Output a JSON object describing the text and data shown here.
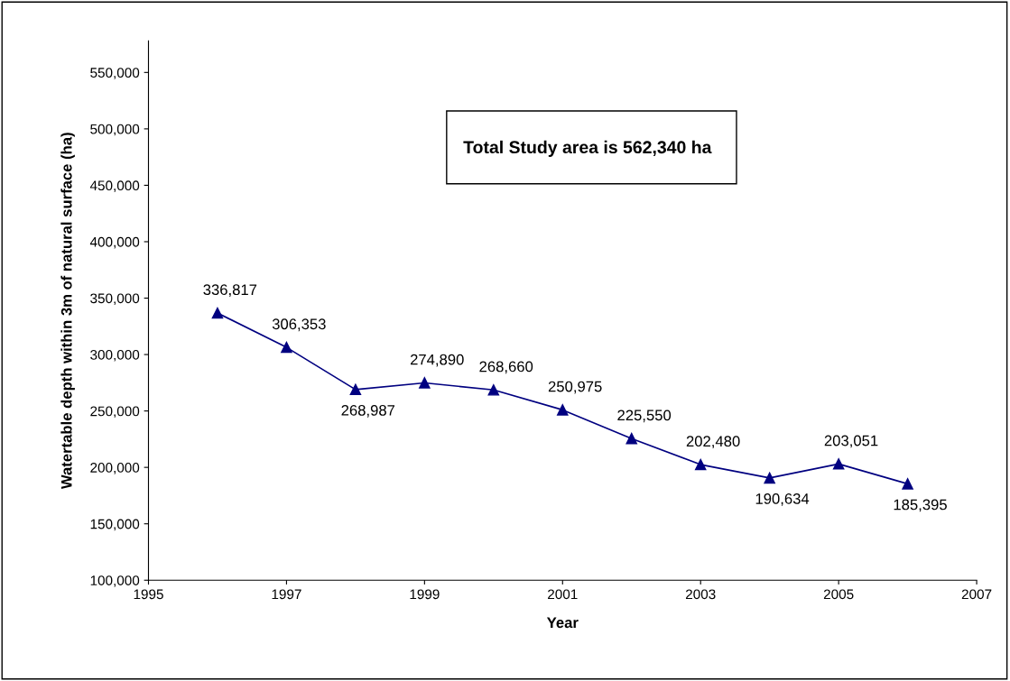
{
  "chart_data": {
    "type": "line",
    "xlabel": "Year",
    "ylabel": "Watertable depth within 3m of natural surface (ha)",
    "x": [
      1996,
      1997,
      1998,
      1999,
      2000,
      2001,
      2002,
      2003,
      2004,
      2005,
      2006
    ],
    "series": [
      {
        "color": "#000080",
        "values": [
          336817,
          306353,
          268987,
          274890,
          268660,
          250975,
          225550,
          202480,
          190634,
          203051,
          185395
        ]
      }
    ],
    "xlim": [
      1995,
      2007
    ],
    "xticks": [
      1995,
      1997,
      1999,
      2001,
      2003,
      2005,
      2007
    ],
    "ylim": [
      100000,
      578000
    ],
    "yticks": [
      {
        "value": 100000,
        "label": "100,000"
      },
      {
        "value": 150000,
        "label": "150,000"
      },
      {
        "value": 200000,
        "label": "200,000"
      },
      {
        "value": 250000,
        "label": "250,000"
      },
      {
        "value": 300000,
        "label": "300,000"
      },
      {
        "value": 350000,
        "label": "350,000"
      },
      {
        "value": 400000,
        "label": "400,000"
      },
      {
        "value": 450000,
        "label": "450,000"
      },
      {
        "value": 500000,
        "label": "500,000"
      },
      {
        "value": 550000,
        "label": "550,000"
      }
    ],
    "value_labels": [
      "336,817",
      "306,353",
      "268,987",
      "274,890",
      "268,660",
      "250,975",
      "225,550",
      "202,480",
      "190,634",
      "203,051",
      "185,395"
    ],
    "marker": "triangle",
    "line_style": "solid",
    "grid": false,
    "legend": false,
    "annotations": [
      "Total Study area is 562,340 ha"
    ]
  }
}
